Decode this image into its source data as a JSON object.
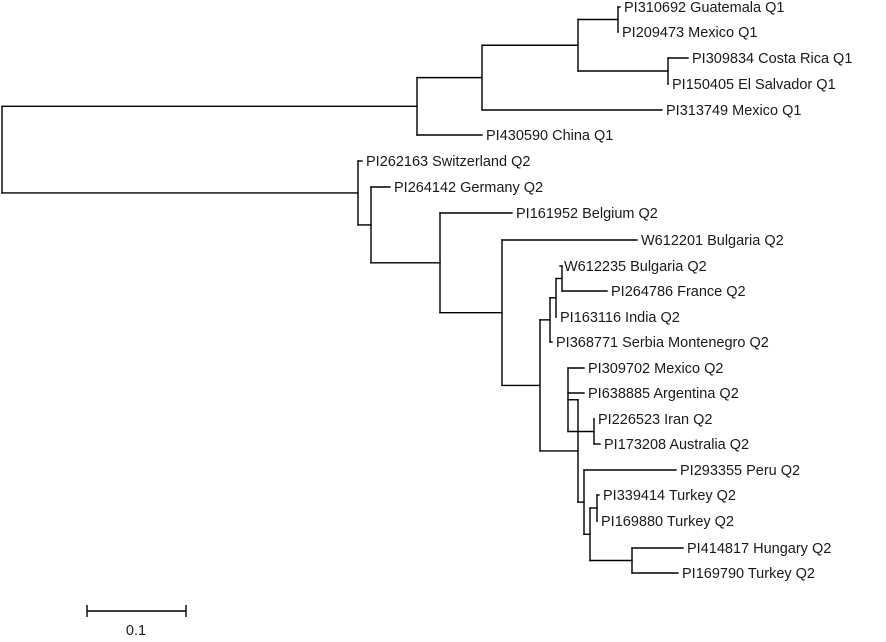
{
  "figure": {
    "line_color": "#000000",
    "text_color": "#1a1a1a",
    "background": "#ffffff"
  },
  "tree": {
    "leaves": [
      {
        "id": "L0",
        "label": "PI310692 Guatemala Q1"
      },
      {
        "id": "L1",
        "label": "PI209473 Mexico Q1"
      },
      {
        "id": "L2",
        "label": "PI309834 Costa Rica Q1"
      },
      {
        "id": "L3",
        "label": "PI150405 El Salvador Q1"
      },
      {
        "id": "L4",
        "label": "PI313749 Mexico Q1"
      },
      {
        "id": "L5",
        "label": "PI430590 China Q1"
      },
      {
        "id": "L6",
        "label": "PI262163 Switzerland Q2"
      },
      {
        "id": "L7",
        "label": "PI264142 Germany Q2"
      },
      {
        "id": "L8",
        "label": "PI161952 Belgium Q2"
      },
      {
        "id": "L9",
        "label": "W612201 Bulgaria Q2"
      },
      {
        "id": "L10",
        "label": "W612235 Bulgaria Q2"
      },
      {
        "id": "L11",
        "label": "PI264786 France Q2"
      },
      {
        "id": "L12",
        "label": "PI163116 India Q2"
      },
      {
        "id": "L13",
        "label": "PI368771 Serbia Montenegro Q2"
      },
      {
        "id": "L14",
        "label": "PI309702 Mexico Q2"
      },
      {
        "id": "L15",
        "label": "PI638885 Argentina Q2"
      },
      {
        "id": "L16",
        "label": "PI226523 Iran Q2"
      },
      {
        "id": "L17",
        "label": "PI173208 Australia Q2"
      },
      {
        "id": "L18",
        "label": "PI293355 Peru Q2"
      },
      {
        "id": "L19",
        "label": "PI339414 Turkey Q2"
      },
      {
        "id": "L20",
        "label": "PI169880 Turkey Q2"
      },
      {
        "id": "L21",
        "label": "PI414817 Hungary Q2"
      },
      {
        "id": "L22",
        "label": "PI169790 Turkey Q2"
      }
    ]
  },
  "scale_bar": {
    "label": "0.1",
    "value": 0.1
  }
}
